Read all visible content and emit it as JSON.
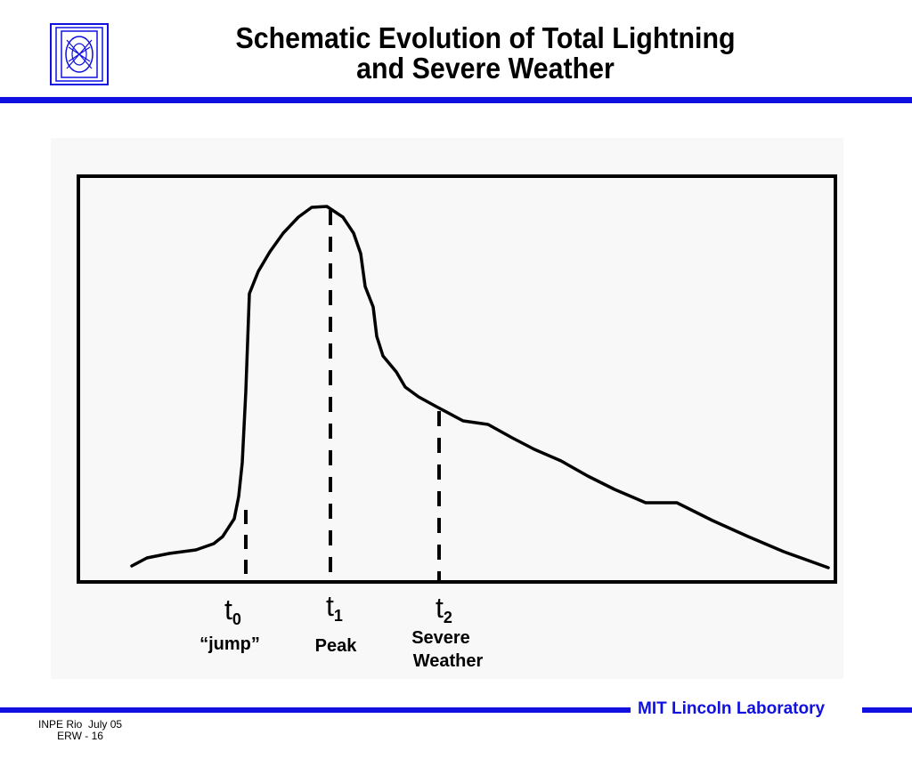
{
  "header": {
    "title_line1": "Schematic Evolution of Total Lightning",
    "title_line2": "and Severe Weather",
    "logo_icon": "mit-ll-logo-icon",
    "accent_color": "#1010e0"
  },
  "diagram": {
    "markers": [
      {
        "symbol": "t",
        "subscript": "0",
        "label": "“jump”"
      },
      {
        "symbol": "t",
        "subscript": "1",
        "label": "Peak"
      },
      {
        "symbol": "t",
        "subscript": "2",
        "label_line1": "Severe",
        "label_line2": "Weather"
      }
    ]
  },
  "footer": {
    "org": "MIT Lincoln Laboratory",
    "meta_line1": "INPE Rio  July 05",
    "meta_line2": "ERW - 16"
  }
}
